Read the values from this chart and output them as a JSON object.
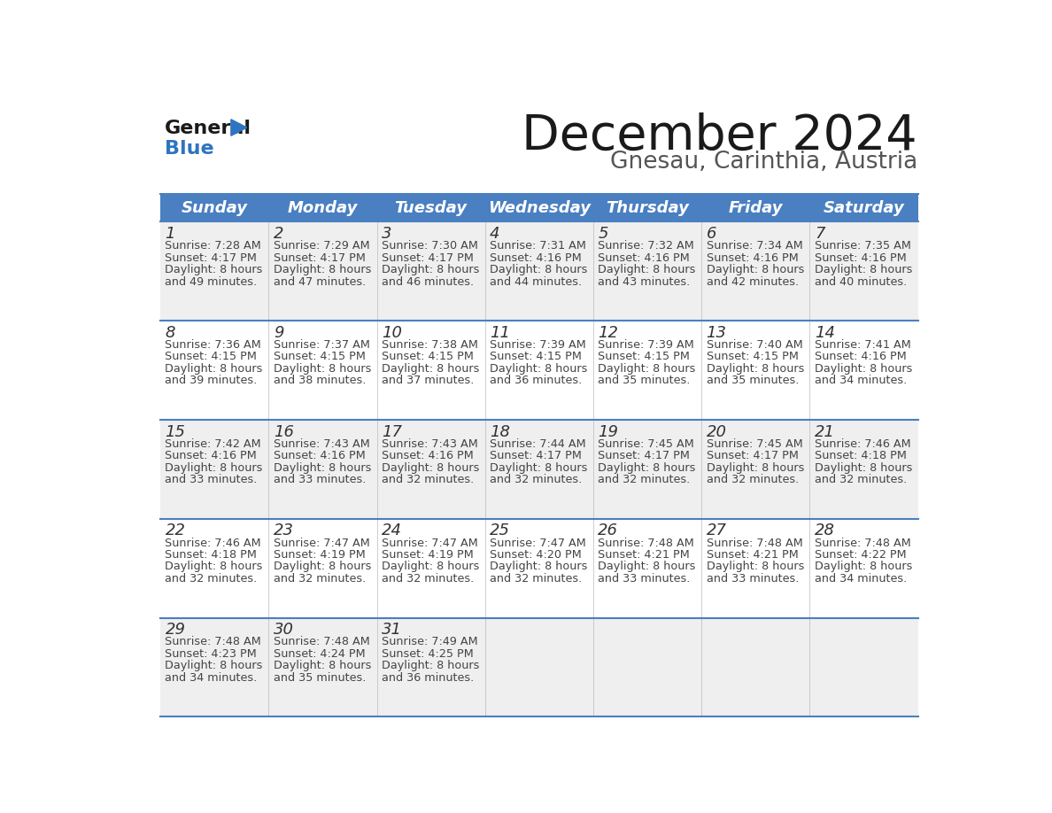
{
  "title": "December 2024",
  "subtitle": "Gnesau, Carinthia, Austria",
  "days_of_week": [
    "Sunday",
    "Monday",
    "Tuesday",
    "Wednesday",
    "Thursday",
    "Friday",
    "Saturday"
  ],
  "header_bg": "#4A7FC1",
  "header_text_color": "#FFFFFF",
  "row_bg_odd": "#EFEFEF",
  "row_bg_even": "#FFFFFF",
  "cell_text_color": "#444444",
  "day_num_color": "#333333",
  "border_color": "#4A7FC1",
  "separator_color": "#AAAAAA",
  "calendar_data": [
    [
      {
        "day": 1,
        "sunrise": "7:28 AM",
        "sunset": "4:17 PM",
        "daylight_hours": 8,
        "daylight_minutes": 49
      },
      {
        "day": 2,
        "sunrise": "7:29 AM",
        "sunset": "4:17 PM",
        "daylight_hours": 8,
        "daylight_minutes": 47
      },
      {
        "day": 3,
        "sunrise": "7:30 AM",
        "sunset": "4:17 PM",
        "daylight_hours": 8,
        "daylight_minutes": 46
      },
      {
        "day": 4,
        "sunrise": "7:31 AM",
        "sunset": "4:16 PM",
        "daylight_hours": 8,
        "daylight_minutes": 44
      },
      {
        "day": 5,
        "sunrise": "7:32 AM",
        "sunset": "4:16 PM",
        "daylight_hours": 8,
        "daylight_minutes": 43
      },
      {
        "day": 6,
        "sunrise": "7:34 AM",
        "sunset": "4:16 PM",
        "daylight_hours": 8,
        "daylight_minutes": 42
      },
      {
        "day": 7,
        "sunrise": "7:35 AM",
        "sunset": "4:16 PM",
        "daylight_hours": 8,
        "daylight_minutes": 40
      }
    ],
    [
      {
        "day": 8,
        "sunrise": "7:36 AM",
        "sunset": "4:15 PM",
        "daylight_hours": 8,
        "daylight_minutes": 39
      },
      {
        "day": 9,
        "sunrise": "7:37 AM",
        "sunset": "4:15 PM",
        "daylight_hours": 8,
        "daylight_minutes": 38
      },
      {
        "day": 10,
        "sunrise": "7:38 AM",
        "sunset": "4:15 PM",
        "daylight_hours": 8,
        "daylight_minutes": 37
      },
      {
        "day": 11,
        "sunrise": "7:39 AM",
        "sunset": "4:15 PM",
        "daylight_hours": 8,
        "daylight_minutes": 36
      },
      {
        "day": 12,
        "sunrise": "7:39 AM",
        "sunset": "4:15 PM",
        "daylight_hours": 8,
        "daylight_minutes": 35
      },
      {
        "day": 13,
        "sunrise": "7:40 AM",
        "sunset": "4:15 PM",
        "daylight_hours": 8,
        "daylight_minutes": 35
      },
      {
        "day": 14,
        "sunrise": "7:41 AM",
        "sunset": "4:16 PM",
        "daylight_hours": 8,
        "daylight_minutes": 34
      }
    ],
    [
      {
        "day": 15,
        "sunrise": "7:42 AM",
        "sunset": "4:16 PM",
        "daylight_hours": 8,
        "daylight_minutes": 33
      },
      {
        "day": 16,
        "sunrise": "7:43 AM",
        "sunset": "4:16 PM",
        "daylight_hours": 8,
        "daylight_minutes": 33
      },
      {
        "day": 17,
        "sunrise": "7:43 AM",
        "sunset": "4:16 PM",
        "daylight_hours": 8,
        "daylight_minutes": 32
      },
      {
        "day": 18,
        "sunrise": "7:44 AM",
        "sunset": "4:17 PM",
        "daylight_hours": 8,
        "daylight_minutes": 32
      },
      {
        "day": 19,
        "sunrise": "7:45 AM",
        "sunset": "4:17 PM",
        "daylight_hours": 8,
        "daylight_minutes": 32
      },
      {
        "day": 20,
        "sunrise": "7:45 AM",
        "sunset": "4:17 PM",
        "daylight_hours": 8,
        "daylight_minutes": 32
      },
      {
        "day": 21,
        "sunrise": "7:46 AM",
        "sunset": "4:18 PM",
        "daylight_hours": 8,
        "daylight_minutes": 32
      }
    ],
    [
      {
        "day": 22,
        "sunrise": "7:46 AM",
        "sunset": "4:18 PM",
        "daylight_hours": 8,
        "daylight_minutes": 32
      },
      {
        "day": 23,
        "sunrise": "7:47 AM",
        "sunset": "4:19 PM",
        "daylight_hours": 8,
        "daylight_minutes": 32
      },
      {
        "day": 24,
        "sunrise": "7:47 AM",
        "sunset": "4:19 PM",
        "daylight_hours": 8,
        "daylight_minutes": 32
      },
      {
        "day": 25,
        "sunrise": "7:47 AM",
        "sunset": "4:20 PM",
        "daylight_hours": 8,
        "daylight_minutes": 32
      },
      {
        "day": 26,
        "sunrise": "7:48 AM",
        "sunset": "4:21 PM",
        "daylight_hours": 8,
        "daylight_minutes": 33
      },
      {
        "day": 27,
        "sunrise": "7:48 AM",
        "sunset": "4:21 PM",
        "daylight_hours": 8,
        "daylight_minutes": 33
      },
      {
        "day": 28,
        "sunrise": "7:48 AM",
        "sunset": "4:22 PM",
        "daylight_hours": 8,
        "daylight_minutes": 34
      }
    ],
    [
      {
        "day": 29,
        "sunrise": "7:48 AM",
        "sunset": "4:23 PM",
        "daylight_hours": 8,
        "daylight_minutes": 34
      },
      {
        "day": 30,
        "sunrise": "7:48 AM",
        "sunset": "4:24 PM",
        "daylight_hours": 8,
        "daylight_minutes": 35
      },
      {
        "day": 31,
        "sunrise": "7:49 AM",
        "sunset": "4:25 PM",
        "daylight_hours": 8,
        "daylight_minutes": 36
      },
      null,
      null,
      null,
      null
    ]
  ],
  "logo_color_general": "#1a1a1a",
  "logo_color_blue": "#2E74C0",
  "logo_triangle_color": "#2E74C0",
  "title_color": "#1a1a1a",
  "subtitle_color": "#555555"
}
